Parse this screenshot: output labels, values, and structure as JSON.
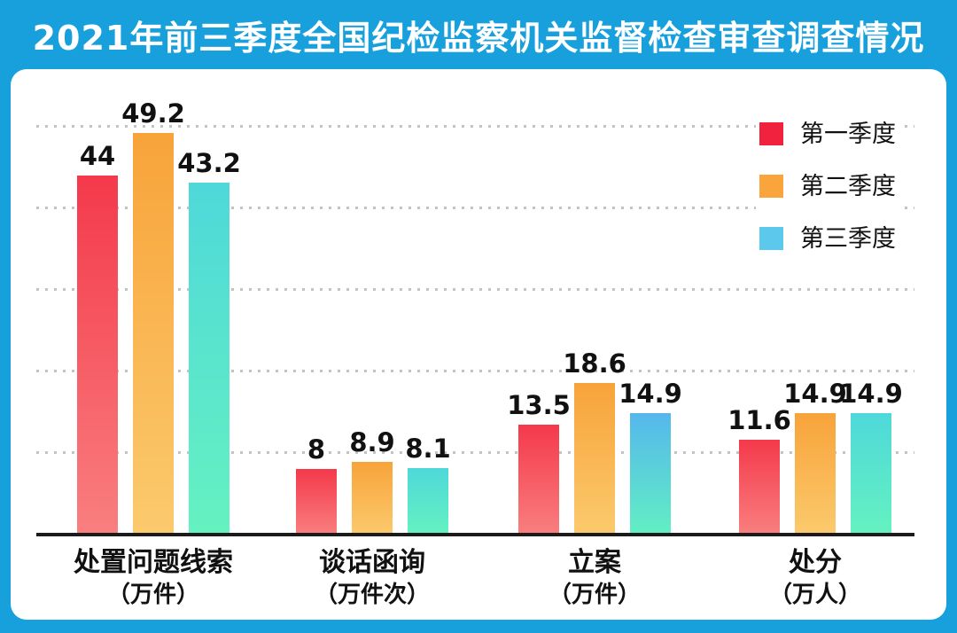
{
  "title": "2021年前三季度全国纪检监察机关监督检查审查调查情况",
  "colors": {
    "frame_blue": "#18a0dc",
    "panel_white": "#ffffff",
    "axis_black": "#1b1b1b",
    "gridline_gray": "#c3c3c3",
    "text_black": "#111111",
    "title_white": "#ffffff"
  },
  "legend": [
    {
      "label": "第一季度",
      "color": "#f1223d"
    },
    {
      "label": "第二季度",
      "color": "#f9a53c"
    },
    {
      "label": "第三季度",
      "color": "#5bc8ec"
    }
  ],
  "chart_data": {
    "type": "bar",
    "title": "2021年前三季度全国纪检监察机关监督检查审查调查情况",
    "categories": [
      {
        "name": "处置问题线索",
        "unit": "（万件）"
      },
      {
        "name": "谈话函询",
        "unit": "（万件次）"
      },
      {
        "name": "立案",
        "unit": "（万件）"
      },
      {
        "name": "处分",
        "unit": "（万人）"
      }
    ],
    "series": [
      {
        "name": "第一季度",
        "values": [
          44,
          8,
          13.5,
          11.6
        ],
        "labels": [
          "44",
          "8",
          "13.5",
          "11.6"
        ],
        "color_top": "#f4394b",
        "color_bottom": "#f97f7f"
      },
      {
        "name": "第二季度",
        "values": [
          49.2,
          8.9,
          18.6,
          14.9
        ],
        "labels": [
          "49.2",
          "8.9",
          "18.6",
          "14.9"
        ],
        "color_top": "#f8a33a",
        "color_bottom": "#fbca6d"
      },
      {
        "name": "第三季度",
        "values": [
          43.2,
          8.1,
          14.9,
          14.9
        ],
        "labels": [
          "43.2",
          "8.1",
          "14.9",
          "14.9"
        ],
        "color_top": "#4ed8da",
        "color_bottom": "#65f2c0"
      }
    ],
    "color_overrides": [
      {
        "series": 2,
        "category": 2,
        "color_top": "#55b7ec",
        "color_bottom": "#62efc3"
      }
    ],
    "ylim": [
      0,
      52
    ],
    "gridlines": [
      10,
      20,
      30,
      40,
      50
    ],
    "grid_style": "dotted",
    "legend_position": "top-right",
    "xlabel": "",
    "ylabel": ""
  }
}
